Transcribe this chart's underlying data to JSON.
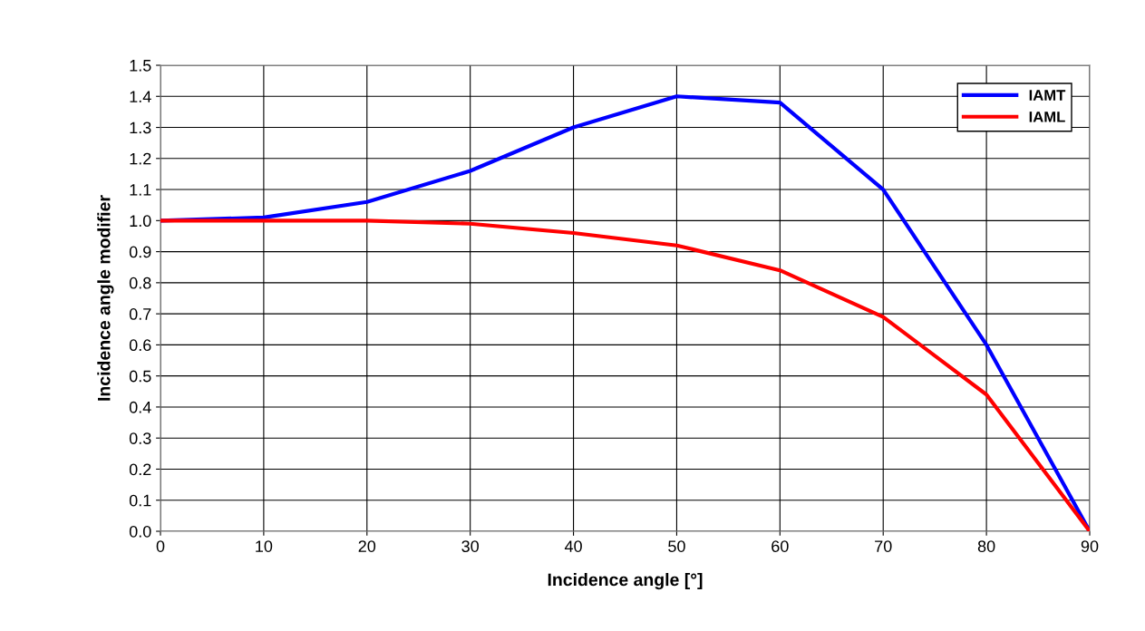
{
  "chart_data": {
    "type": "line",
    "xlabel": "Incidence angle [°]",
    "ylabel": "Incidence angle modifier",
    "x": [
      0,
      10,
      20,
      30,
      40,
      50,
      60,
      70,
      80,
      90
    ],
    "series": [
      {
        "name": "IAMT",
        "color": "#0000ff",
        "values": [
          1.0,
          1.01,
          1.06,
          1.16,
          1.3,
          1.4,
          1.38,
          1.1,
          0.6,
          0.0
        ]
      },
      {
        "name": "IAML",
        "color": "#ff0000",
        "values": [
          1.0,
          1.0,
          1.0,
          0.99,
          0.96,
          0.92,
          0.84,
          0.69,
          0.44,
          0.0
        ]
      }
    ],
    "xlim": [
      0,
      90
    ],
    "xticks": [
      0,
      10,
      20,
      30,
      40,
      50,
      60,
      70,
      80,
      90
    ],
    "ylim": [
      0,
      1.5
    ],
    "yticks": [
      {
        "value": 0,
        "label": "0.0"
      },
      0.1,
      0.2,
      0.3,
      0.4,
      0.5,
      0.6,
      0.7,
      0.8,
      0.9,
      {
        "value": 1,
        "label": "1.0"
      },
      1.1,
      1.2,
      1.3,
      1.4,
      1.5
    ],
    "grid": true,
    "legend": "top right",
    "marker": "none",
    "line_style": "solid"
  }
}
